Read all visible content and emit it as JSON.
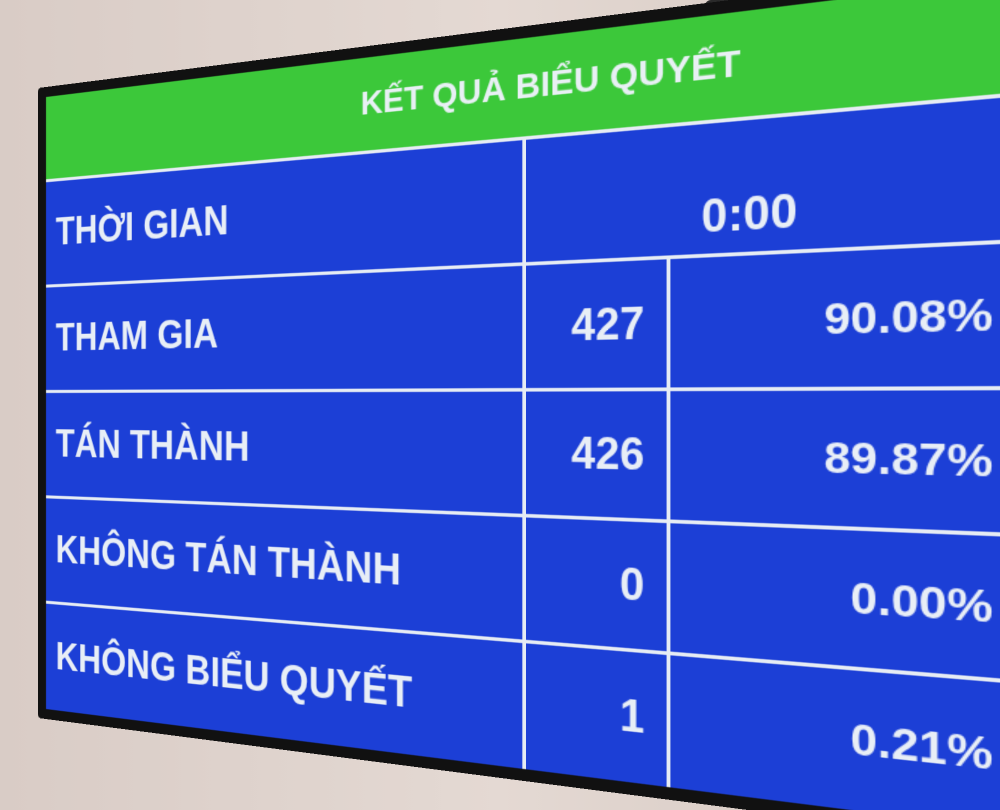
{
  "title": "KẾT QUẢ BIỂU QUYẾT",
  "time": {
    "label": "THỜI GIAN",
    "value": "0:00"
  },
  "rows": [
    {
      "label": "THAM GIA",
      "count": "427",
      "percent": "90.08%"
    },
    {
      "label": "TÁN THÀNH",
      "count": "426",
      "percent": "89.87%"
    },
    {
      "label": "KHÔNG TÁN THÀNH",
      "count": "0",
      "percent": "0.00%"
    },
    {
      "label": "KHÔNG BIỂU QUYẾT",
      "count": "1",
      "percent": "0.21%"
    }
  ],
  "colors": {
    "header": "#3cc83a",
    "body": "#1c3fd6",
    "text": "#e8eef6"
  }
}
